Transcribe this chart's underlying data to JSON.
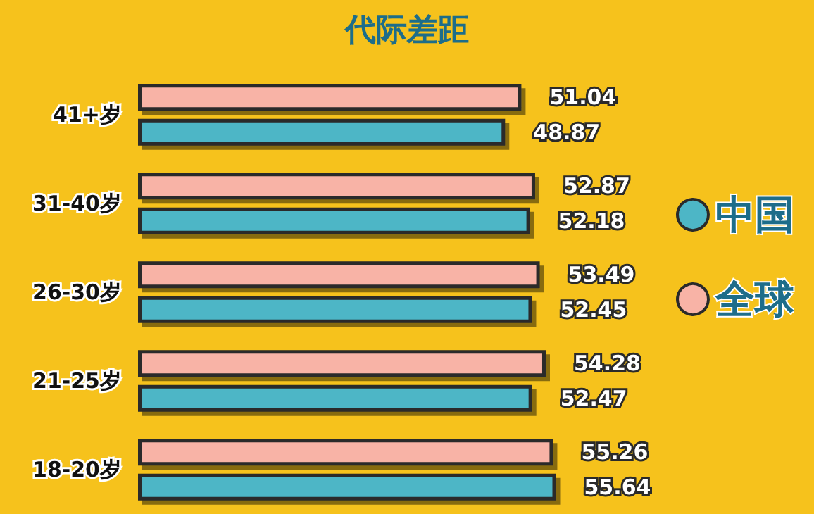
{
  "chart_data": {
    "type": "bar",
    "orientation": "horizontal",
    "title": "代际差距",
    "categories": [
      "41+岁",
      "31-40岁",
      "26-30岁",
      "21-25岁",
      "18-20岁"
    ],
    "series": [
      {
        "name": "全球",
        "color": "#f8b3a6",
        "values": [
          51.04,
          52.87,
          53.49,
          54.28,
          55.26
        ]
      },
      {
        "name": "中国",
        "color": "#4db6c6",
        "values": [
          48.87,
          52.18,
          52.45,
          52.47,
          55.64
        ]
      }
    ],
    "data_labels": true,
    "legend": "right"
  }
}
